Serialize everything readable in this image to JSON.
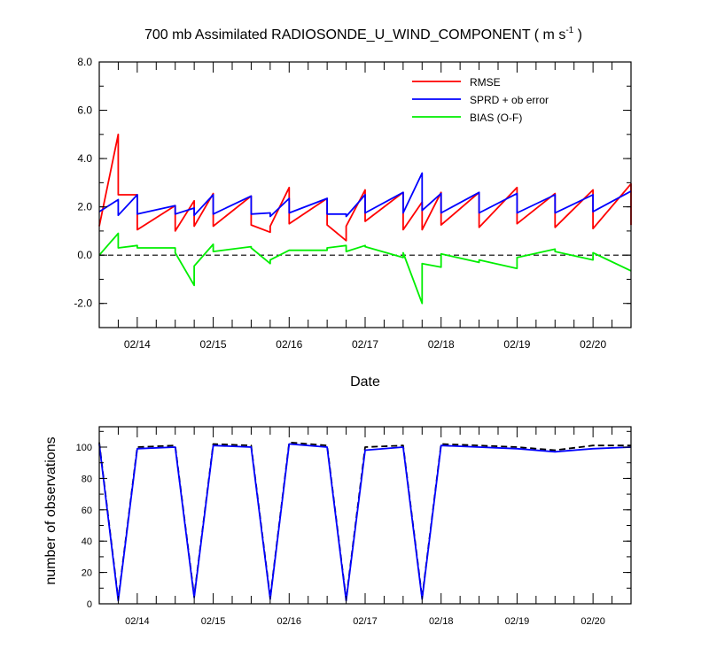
{
  "chart_data": [
    {
      "type": "line",
      "title": "700 mb Assimilated RADIOSONDE_U_WIND_COMPONENT ( m s",
      "title_sup": "-1",
      "title_end": " )",
      "xlabel": "Date",
      "ylabel": "",
      "xlim": [
        13.5,
        20.5
      ],
      "ylim": [
        -3,
        8
      ],
      "yticks": [
        -2.0,
        0.0,
        2.0,
        4.0,
        6.0,
        8.0
      ],
      "ytick_labels": [
        "-2.0",
        "0.0",
        "2.0",
        "4.0",
        "6.0",
        "8.0"
      ],
      "xticks": [
        14,
        15,
        16,
        17,
        18,
        19,
        20
      ],
      "xtick_labels": [
        "02/14",
        "02/15",
        "02/16",
        "02/17",
        "02/18",
        "02/19",
        "02/20"
      ],
      "zero_line": "dashed",
      "legend_position": "top-right",
      "series": [
        {
          "name": "RMSE",
          "color": "#ff0000",
          "x": [
            13.5,
            13.75,
            13.75,
            14.0,
            14.0,
            14.5,
            14.5,
            14.75,
            14.75,
            15.0,
            15.0,
            15.5,
            15.5,
            15.75,
            15.75,
            16.0,
            16.0,
            16.5,
            16.5,
            16.75,
            16.75,
            17.0,
            17.0,
            17.5,
            17.5,
            17.75,
            17.75,
            18.0,
            18.0,
            18.5,
            18.5,
            19.0,
            19.0,
            19.5,
            19.5,
            20.0,
            20.0,
            20.5,
            20.5
          ],
          "y": [
            1.2,
            5.0,
            2.5,
            2.5,
            1.05,
            2.05,
            1.0,
            2.25,
            1.2,
            2.55,
            1.2,
            2.45,
            1.25,
            0.95,
            1.2,
            2.8,
            1.3,
            2.35,
            1.25,
            0.6,
            1.2,
            2.7,
            1.4,
            2.6,
            1.05,
            2.2,
            1.05,
            2.6,
            1.25,
            2.6,
            1.15,
            2.8,
            1.3,
            2.55,
            1.15,
            2.7,
            1.1,
            2.95,
            1.25
          ]
        },
        {
          "name": "SPRD + ob error",
          "color": "#0000ff",
          "x": [
            13.5,
            13.75,
            13.75,
            14.0,
            14.0,
            14.5,
            14.5,
            14.75,
            14.75,
            15.0,
            15.0,
            15.5,
            15.5,
            15.75,
            15.75,
            16.0,
            16.0,
            16.5,
            16.5,
            16.75,
            16.75,
            17.0,
            17.0,
            17.5,
            17.5,
            17.75,
            17.75,
            18.0,
            18.0,
            18.5,
            18.5,
            19.0,
            19.0,
            19.5,
            19.5,
            20.0,
            20.0,
            20.5
          ],
          "y": [
            1.8,
            2.3,
            1.65,
            2.5,
            1.7,
            2.05,
            1.7,
            1.95,
            1.65,
            2.5,
            1.7,
            2.45,
            1.7,
            1.75,
            1.6,
            2.35,
            1.75,
            2.35,
            1.7,
            1.7,
            1.6,
            2.5,
            1.75,
            2.6,
            1.75,
            3.4,
            1.85,
            2.55,
            1.75,
            2.6,
            1.75,
            2.55,
            1.75,
            2.5,
            1.75,
            2.5,
            1.8,
            2.65
          ]
        },
        {
          "name": "BIAS (O-F)",
          "color": "#00ee00",
          "x": [
            13.5,
            13.75,
            13.75,
            14.0,
            14.0,
            14.5,
            14.5,
            14.75,
            14.75,
            15.0,
            15.0,
            15.5,
            15.5,
            15.75,
            15.75,
            16.0,
            16.0,
            16.5,
            16.5,
            16.75,
            16.75,
            17.0,
            17.0,
            17.5,
            17.5,
            17.75,
            17.75,
            18.0,
            18.0,
            18.5,
            18.5,
            19.0,
            19.0,
            19.5,
            19.5,
            20.0,
            20.0,
            20.5
          ],
          "y": [
            0.0,
            0.9,
            0.3,
            0.4,
            0.3,
            0.3,
            0.1,
            -1.25,
            -0.45,
            0.45,
            0.15,
            0.35,
            0.3,
            -0.35,
            -0.2,
            0.2,
            0.2,
            0.2,
            0.3,
            0.4,
            0.15,
            0.4,
            0.35,
            -0.1,
            0.1,
            -2.0,
            -0.35,
            -0.5,
            0.05,
            -0.3,
            -0.2,
            -0.55,
            -0.1,
            0.25,
            0.15,
            -0.2,
            0.1,
            -0.65
          ]
        }
      ]
    },
    {
      "type": "line",
      "title": "",
      "xlabel": "",
      "ylabel": "number of observations",
      "xlim": [
        13.5,
        20.5
      ],
      "ylim": [
        0,
        113
      ],
      "yticks": [
        0,
        20,
        40,
        60,
        80,
        100
      ],
      "ytick_labels": [
        "0",
        "20",
        "40",
        "60",
        "80",
        "100"
      ],
      "xticks": [
        14,
        15,
        16,
        17,
        18,
        19,
        20
      ],
      "xtick_labels": [
        "02/14",
        "02/15",
        "02/16",
        "02/17",
        "02/18",
        "02/19",
        "02/20"
      ],
      "series": [
        {
          "name": "",
          "color": "#000000",
          "dash": "dashed",
          "x": [
            13.5,
            13.75,
            14.0,
            14.5,
            14.75,
            15.0,
            15.5,
            15.75,
            16.0,
            16.5,
            16.75,
            17.0,
            17.5,
            17.75,
            18.0,
            18.5,
            19.0,
            19.5,
            20.0,
            20.5
          ],
          "y": [
            103,
            3,
            100,
            101,
            5,
            102,
            101,
            4,
            103,
            101,
            3,
            100,
            101,
            4,
            102,
            101,
            100,
            98,
            101,
            101
          ]
        },
        {
          "name": "",
          "color": "#0000ff",
          "dash": "solid",
          "x": [
            13.5,
            13.75,
            14.0,
            14.5,
            14.75,
            15.0,
            15.5,
            15.75,
            16.0,
            16.5,
            16.75,
            17.0,
            17.5,
            17.75,
            18.0,
            18.5,
            19.0,
            19.5,
            20.0,
            20.5
          ],
          "y": [
            102,
            2,
            99,
            100,
            4,
            101,
            100,
            3,
            102,
            100,
            2,
            98,
            100,
            3,
            101,
            100,
            99,
            97,
            99,
            100
          ]
        }
      ]
    }
  ]
}
